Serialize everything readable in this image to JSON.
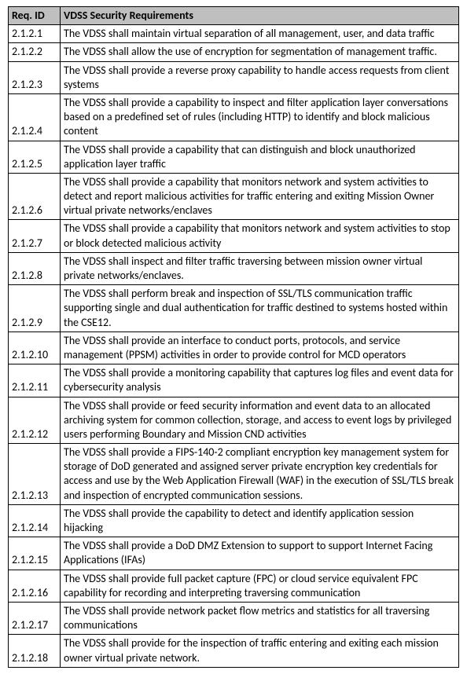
{
  "table": {
    "header_bg": "#bfbfbf",
    "border_color": "#000000",
    "font_family": "Calibri",
    "font_size_pt": 11,
    "columns": [
      {
        "key": "id",
        "label": "Req. ID"
      },
      {
        "key": "desc",
        "label": "VDSS Security Requirements"
      }
    ],
    "rows": [
      {
        "id": "2.1.2.1",
        "desc": "The VDSS shall maintain virtual separation of all management, user, and data traffic"
      },
      {
        "id": "2.1.2.2",
        "desc": "The VDSS shall allow the use of encryption for segmentation of management traffic."
      },
      {
        "id": "2.1.2.3",
        "desc": "The VDSS shall provide a reverse proxy capability to handle access requests from client systems"
      },
      {
        "id": "2.1.2.4",
        "desc": "The VDSS shall provide a capability to inspect and filter application layer conversations based on a predefined set of rules (including HTTP) to identify and block malicious content"
      },
      {
        "id": "2.1.2.5",
        "desc": "The VDSS shall provide a capability that can distinguish and block unauthorized application layer traffic"
      },
      {
        "id": "2.1.2.6",
        "desc": "The VDSS shall provide a capability that monitors network and system activities to detect and report malicious activities for traffic entering and exiting Mission Owner virtual private networks/enclaves"
      },
      {
        "id": "2.1.2.7",
        "desc": "The VDSS shall provide a capability that monitors network and system activities to stop or block detected malicious activity"
      },
      {
        "id": "2.1.2.8",
        "desc": "The VDSS shall inspect and filter traffic traversing between mission owner virtual private networks/enclaves."
      },
      {
        "id": "2.1.2.9",
        "desc": "The VDSS shall perform break and inspection of SSL/TLS communication traffic supporting single and dual authentication for traffic destined to systems hosted within the CSE12."
      },
      {
        "id": "2.1.2.10",
        "desc": "The VDSS shall provide an interface to conduct ports, protocols, and service management (PPSM) activities in order to provide control for MCD operators"
      },
      {
        "id": "2.1.2.11",
        "desc": "The VDSS shall provide a monitoring capability that captures log files and event data for cybersecurity analysis"
      },
      {
        "id": "2.1.2.12",
        "desc": "The VDSS shall provide or feed security information and event data to an allocated archiving system for common collection, storage, and access to event logs by privileged users performing Boundary and Mission CND activities"
      },
      {
        "id": "2.1.2.13",
        "desc": "The VDSS shall provide a FIPS-140-2 compliant encryption key management system for storage of DoD generated and assigned server private encryption key credentials for access and use by the Web Application Firewall (WAF) in the execution of SSL/TLS break and inspection of encrypted communication sessions."
      },
      {
        "id": "2.1.2.14",
        "desc": "The VDSS shall provide the capability to detect and identify application session hijacking"
      },
      {
        "id": "2.1.2.15",
        "desc": "The VDSS shall provide a DoD DMZ Extension to support to support Internet Facing Applications (IFAs)"
      },
      {
        "id": "2.1.2.16",
        "desc": "The VDSS shall provide full packet capture (FPC) or cloud service equivalent FPC capability for recording and interpreting traversing communication"
      },
      {
        "id": "2.1.2.17",
        "desc": "The VDSS shall provide network packet flow metrics and statistics for all traversing communications"
      },
      {
        "id": "2.1.2.18",
        "desc": "The VDSS shall provide for the inspection of traffic entering and exiting each mission owner virtual private network."
      }
    ]
  }
}
